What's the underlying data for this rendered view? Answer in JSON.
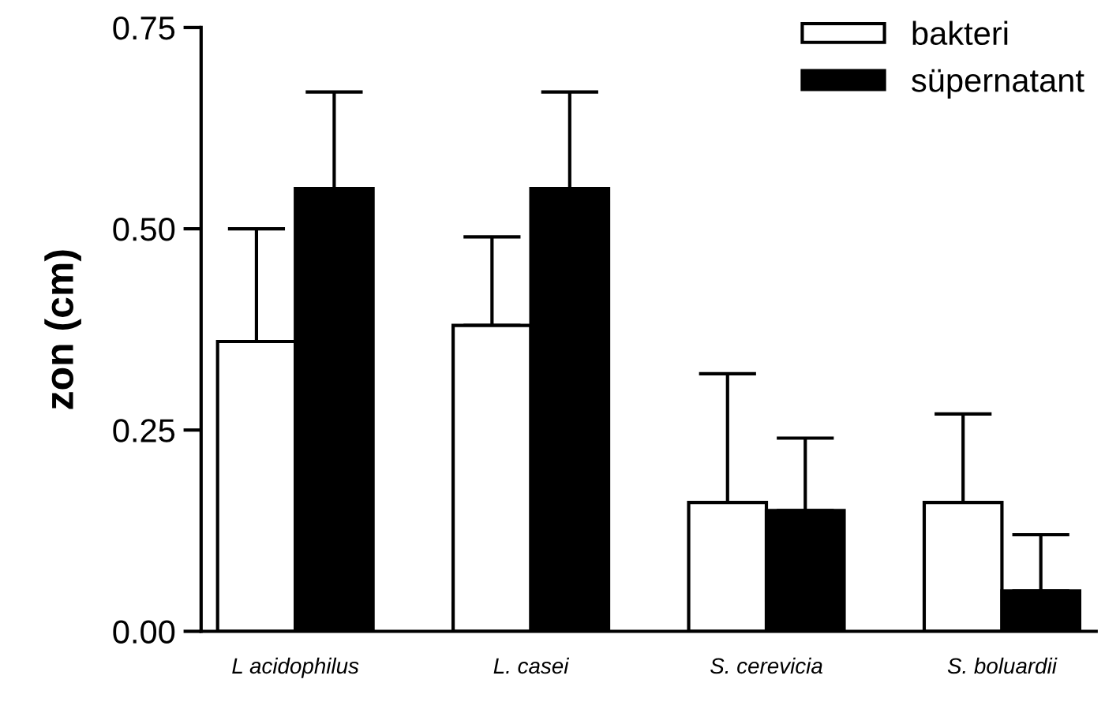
{
  "chart_data": {
    "type": "bar",
    "ylabel": "zon (cm)",
    "categories": [
      "L acidophilus",
      "L. casei",
      "S. cerevicia",
      "S. boluardii"
    ],
    "series": [
      {
        "name": "bakteri",
        "color": "#ffffff",
        "values": [
          0.36,
          0.38,
          0.16,
          0.16
        ],
        "errors": [
          [
            0.36,
            0.5
          ],
          [
            0.38,
            0.49
          ],
          [
            0.16,
            0.32
          ],
          [
            0.16,
            0.27
          ]
        ]
      },
      {
        "name": "süpernatant",
        "color": "#000000",
        "values": [
          0.55,
          0.55,
          0.15,
          0.05
        ],
        "errors": [
          [
            0.55,
            0.67
          ],
          [
            0.55,
            0.67
          ],
          [
            0.15,
            0.24
          ],
          [
            0.05,
            0.12
          ]
        ]
      }
    ],
    "ylim": [
      0,
      0.75
    ],
    "yticks": [
      {
        "value": 0,
        "label": "0.00"
      },
      {
        "value": 0.25,
        "label": "0.25"
      },
      {
        "value": 0.5,
        "label": "0.50"
      },
      {
        "value": 0.75,
        "label": "0.75"
      }
    ],
    "grid": false,
    "legend": "top right"
  }
}
